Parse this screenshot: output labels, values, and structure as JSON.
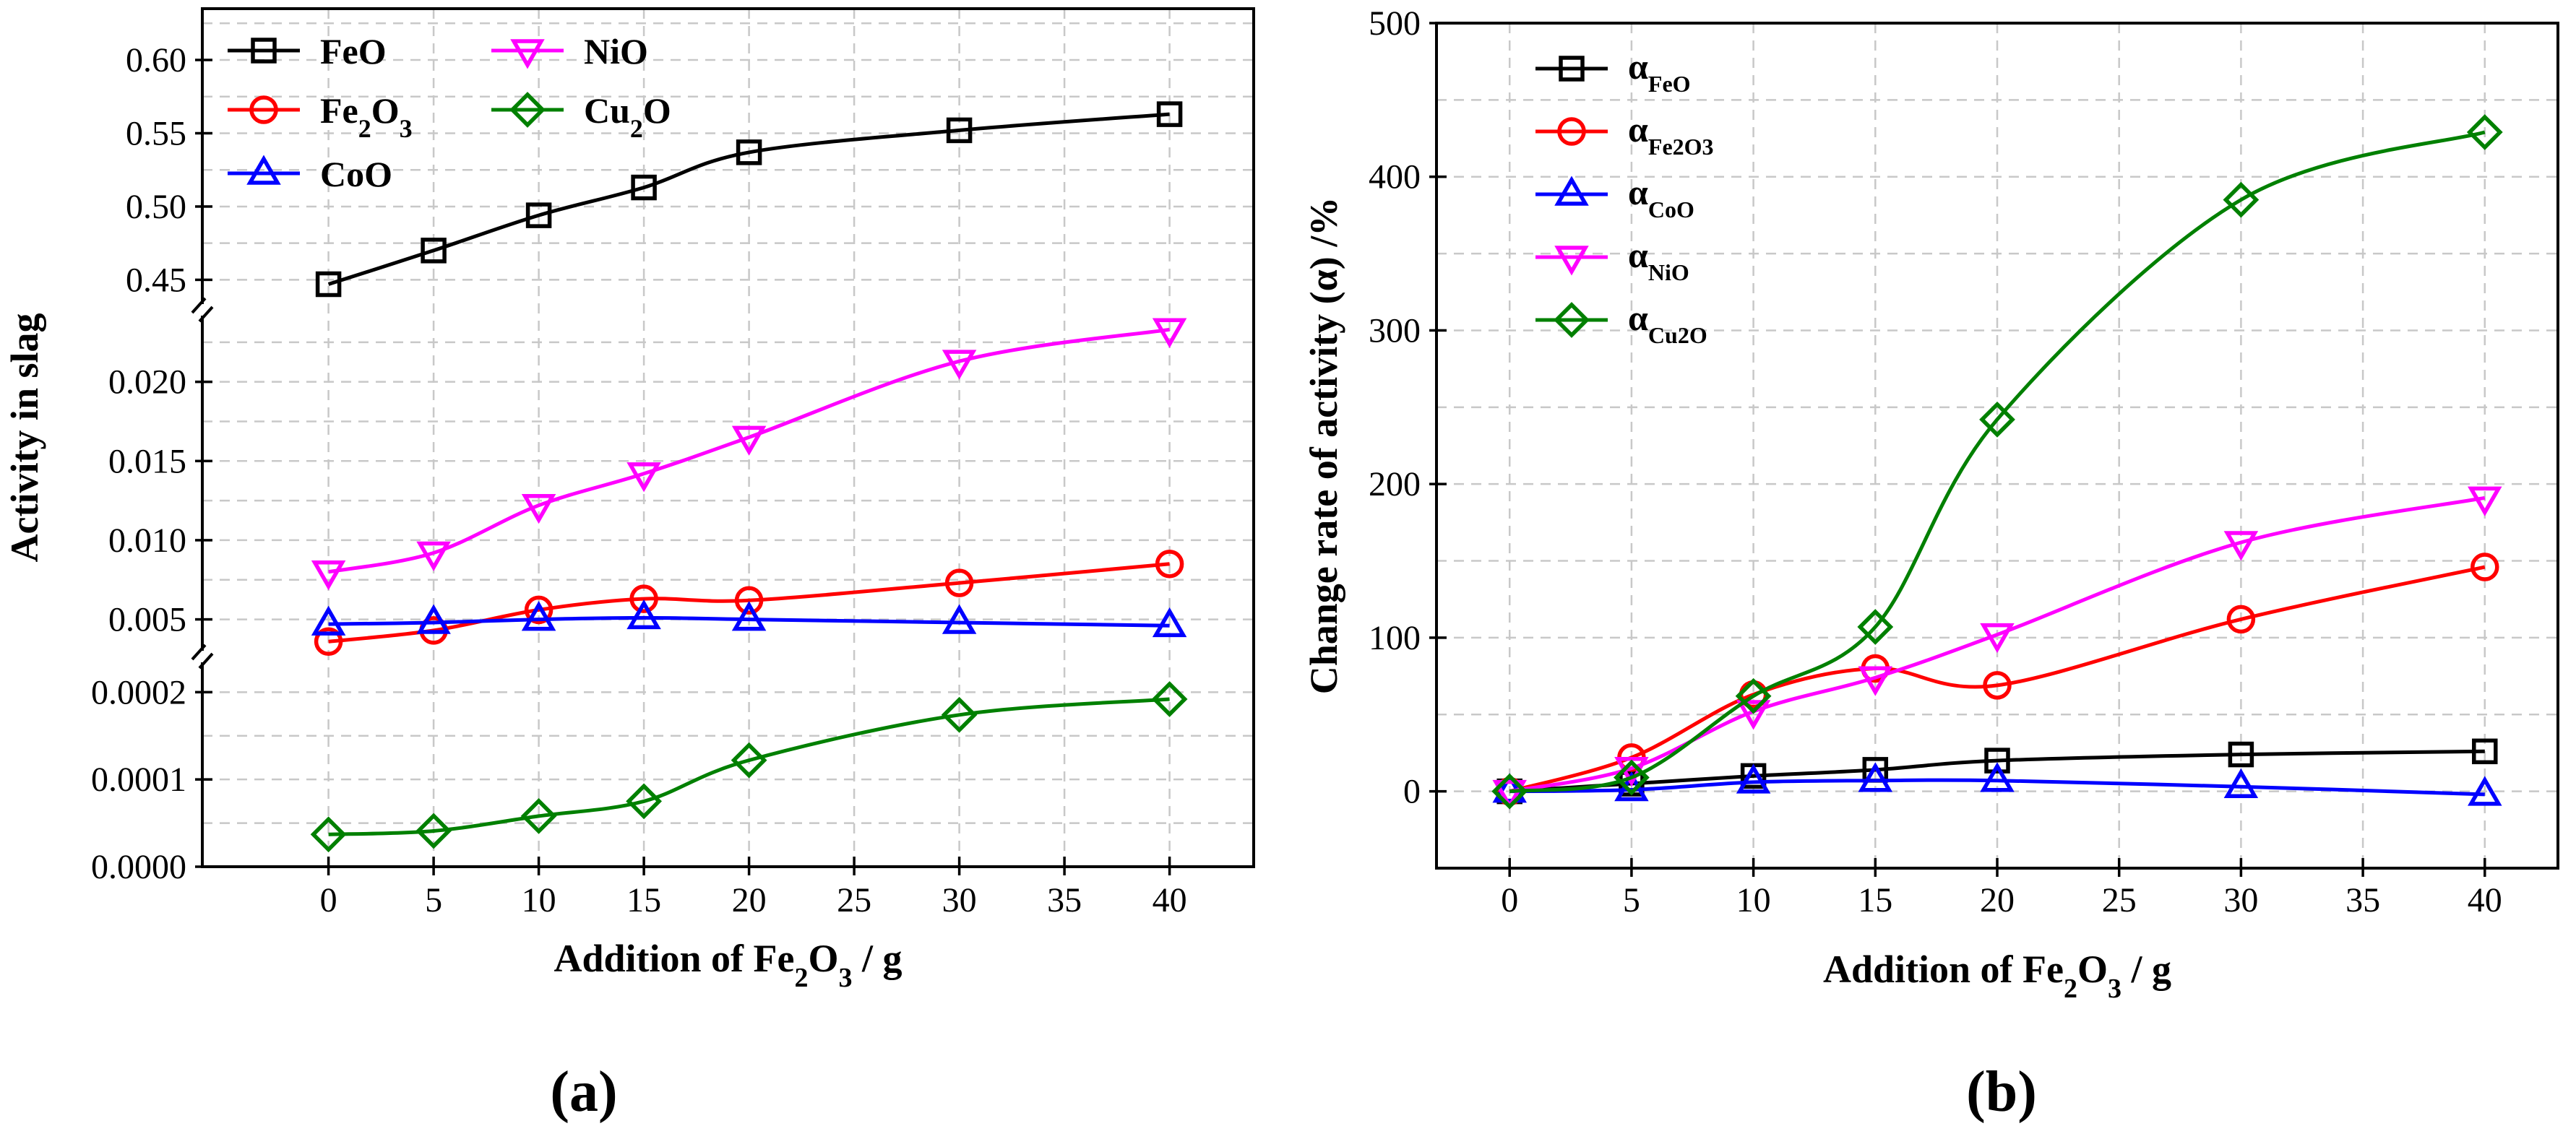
{
  "chart_data": [
    {
      "id": "a",
      "type": "line",
      "panel_label": "(a)",
      "xlabel": {
        "pre": "Addition of Fe",
        "s1": "2",
        "mid": "O",
        "s2": "3",
        "post": " / g"
      },
      "ylabel": "Activity in slag",
      "x_ticks": [
        "0",
        "5",
        "10",
        "15",
        "20",
        "25",
        "30",
        "35",
        "40"
      ],
      "x_range": [
        -6,
        44
      ],
      "y_segments": [
        {
          "name": "top",
          "ylim": [
            0.43,
            0.635
          ],
          "ticks": [
            "0.45",
            "0.50",
            "0.55",
            "0.60"
          ]
        },
        {
          "name": "middle",
          "ylim": [
            0.0027,
            0.0245
          ],
          "ticks": [
            "0.005",
            "0.010",
            "0.015",
            "0.020"
          ]
        },
        {
          "name": "bottom",
          "ylim": [
            0,
            0.00024
          ],
          "ticks": [
            "0.0000",
            "0.0001",
            "0.0002"
          ]
        }
      ],
      "x": [
        0,
        5,
        10,
        15,
        20,
        30,
        40
      ],
      "series": [
        {
          "name": "FeO",
          "label": {
            "pre": "FeO"
          },
          "color": "#000000",
          "marker": "square",
          "segment": "top",
          "values": [
            0.447,
            0.47,
            0.494,
            0.513,
            0.537,
            0.552,
            0.563
          ]
        },
        {
          "name": "Fe2O3",
          "label": {
            "pre": "Fe",
            "s1": "2",
            "mid": "O",
            "s2": "3"
          },
          "color": "#ff0000",
          "marker": "circle",
          "segment": "middle",
          "values": [
            0.0036,
            0.0043,
            0.0056,
            0.0063,
            0.0062,
            0.0073,
            0.0085
          ]
        },
        {
          "name": "CoO",
          "label": {
            "pre": "CoO"
          },
          "color": "#0000ff",
          "marker": "triangle-up",
          "segment": "middle",
          "values": [
            0.0047,
            0.0048,
            0.005,
            0.0051,
            0.005,
            0.0048,
            0.0046
          ]
        },
        {
          "name": "NiO",
          "label": {
            "pre": "NiO"
          },
          "color": "#ff00ff",
          "marker": "triangle-down",
          "segment": "middle",
          "values": [
            0.008,
            0.0092,
            0.0122,
            0.0142,
            0.0165,
            0.0213,
            0.0233
          ]
        },
        {
          "name": "Cu2O",
          "label": {
            "pre": "Cu",
            "s1": "2",
            "mid": "O"
          },
          "color": "#008000",
          "marker": "diamond",
          "segment": "bottom",
          "values": [
            3.7e-05,
            4.1e-05,
            5.8e-05,
            7.5e-05,
            0.000122,
            0.000174,
            0.000192
          ]
        }
      ]
    },
    {
      "id": "b",
      "type": "line",
      "panel_label": "(b)",
      "xlabel": {
        "pre": "Addition of Fe",
        "s1": "2",
        "mid": "O",
        "s2": "3",
        "post": " / g"
      },
      "ylabel": "Change rate of activity (α) /%",
      "x_ticks": [
        "0",
        "5",
        "10",
        "15",
        "20",
        "25",
        "30",
        "35",
        "40"
      ],
      "x_range": [
        -3,
        43
      ],
      "ylim": [
        -50,
        500
      ],
      "y_ticks": [
        "0",
        "100",
        "200",
        "300",
        "400",
        "500"
      ],
      "x": [
        0,
        5,
        10,
        15,
        20,
        30,
        40
      ],
      "series": [
        {
          "name": "α FeO",
          "label": {
            "pre": "α",
            "sub": "FeO"
          },
          "color": "#000000",
          "marker": "square",
          "values": [
            0,
            5,
            10,
            14,
            20,
            24,
            26
          ]
        },
        {
          "name": "α Fe2O3",
          "label": {
            "pre": "α",
            "sub": "Fe2O3"
          },
          "color": "#ff0000",
          "marker": "circle",
          "values": [
            0,
            22,
            63,
            80,
            69,
            112,
            146
          ]
        },
        {
          "name": "α CoO",
          "label": {
            "pre": "α",
            "sub": "CoO"
          },
          "color": "#0000ff",
          "marker": "triangle-up",
          "values": [
            0,
            1,
            6,
            7,
            7,
            3,
            -2
          ]
        },
        {
          "name": "α NiO",
          "label": {
            "pre": "α",
            "sub": "NiO"
          },
          "color": "#ff00ff",
          "marker": "triangle-down",
          "values": [
            0,
            15,
            52,
            74,
            102,
            162,
            191
          ]
        },
        {
          "name": "α Cu2O",
          "label": {
            "pre": "α",
            "sub": "Cu2O"
          },
          "color": "#008000",
          "marker": "diamond",
          "values": [
            0,
            9,
            62,
            107,
            242,
            385,
            429
          ]
        }
      ]
    }
  ]
}
